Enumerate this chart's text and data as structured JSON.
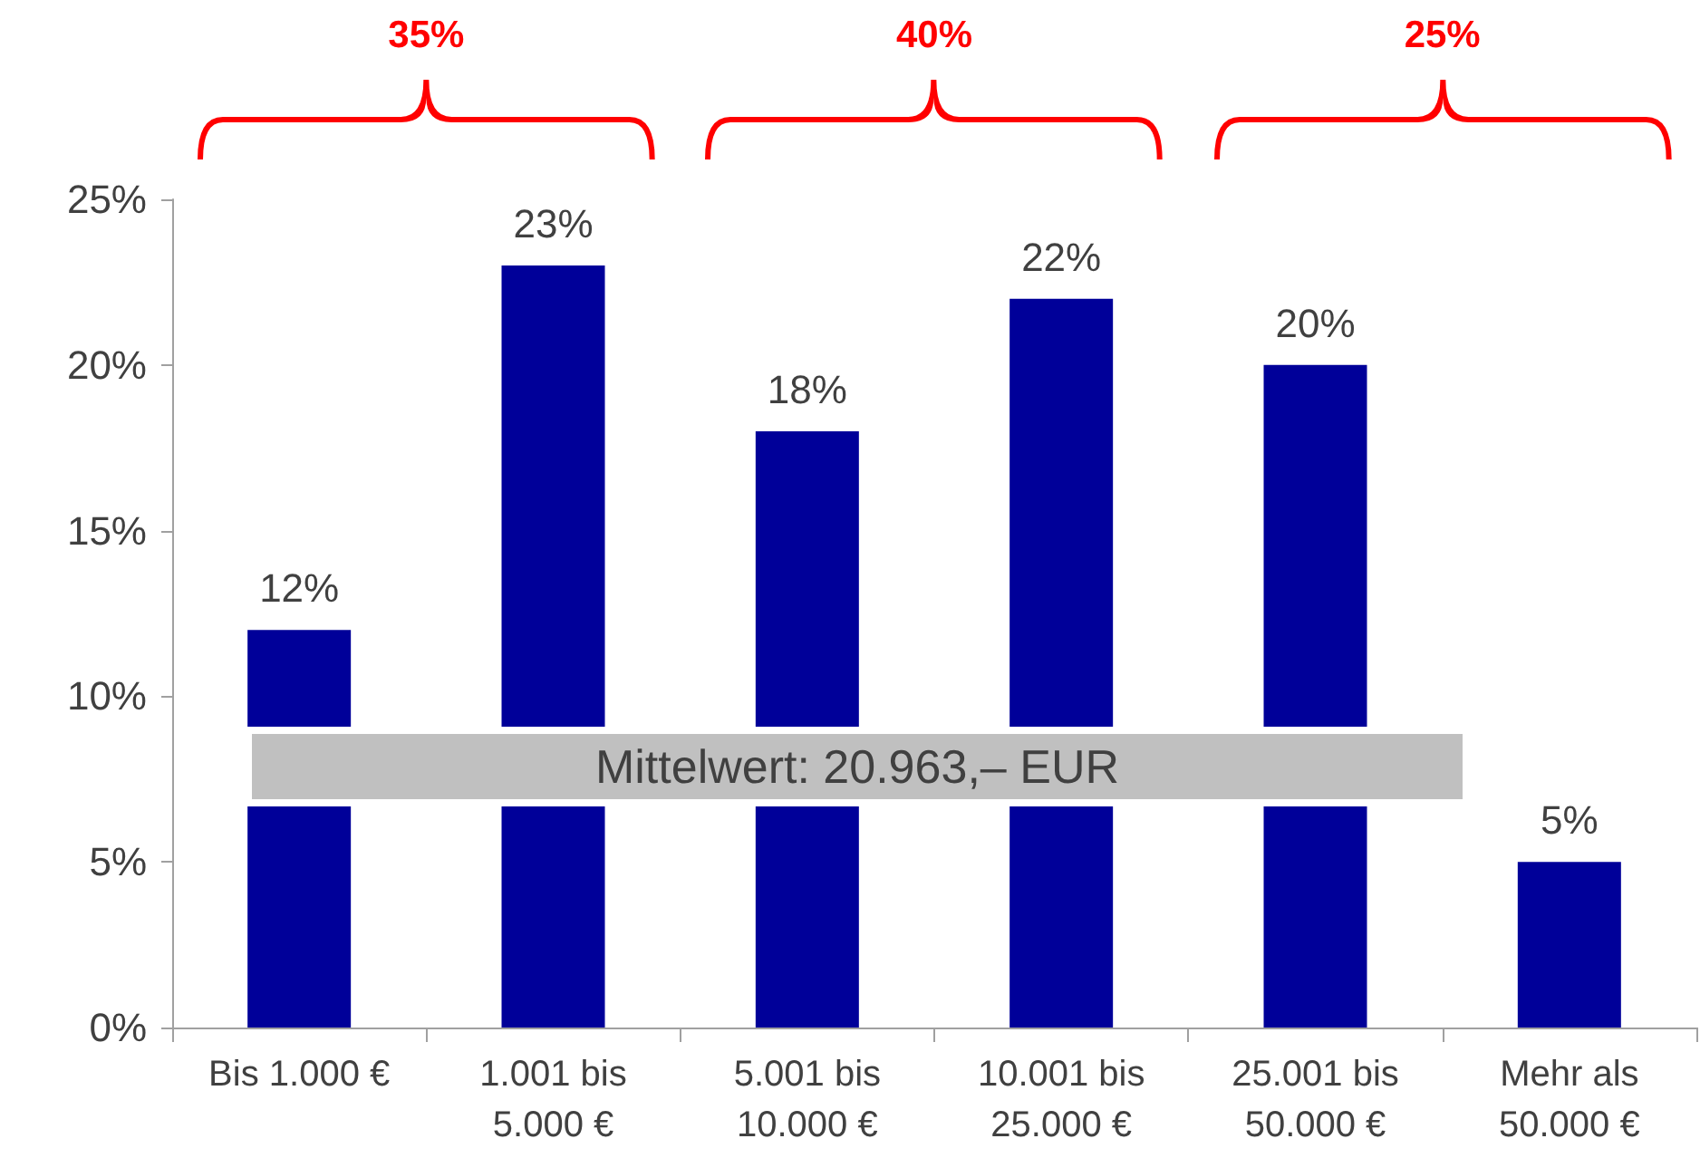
{
  "chart_data": {
    "type": "bar",
    "categories": [
      "Bis 1.000 €",
      "1.001 bis\n5.000 €",
      "5.001 bis\n10.000 €",
      "10.001 bis\n25.000 €",
      "25.001 bis\n50.000 €",
      "Mehr als\n50.000 €"
    ],
    "values": [
      12,
      23,
      18,
      22,
      20,
      5
    ],
    "value_labels": [
      "12%",
      "23%",
      "18%",
      "22%",
      "20%",
      "5%"
    ],
    "color": "#000099",
    "ylim": [
      0,
      25
    ],
    "yticks": [
      {
        "value": 0,
        "label": "0%"
      },
      {
        "value": 5,
        "label": "5%"
      },
      {
        "value": 10,
        "label": "10%"
      },
      {
        "value": 15,
        "label": "15%"
      },
      {
        "value": 20,
        "label": "20%"
      },
      {
        "value": 25,
        "label": "25%"
      }
    ],
    "annotations": [
      "35%",
      "40%",
      "25%",
      "Mittelwert: 20.963,– EUR"
    ]
  }
}
